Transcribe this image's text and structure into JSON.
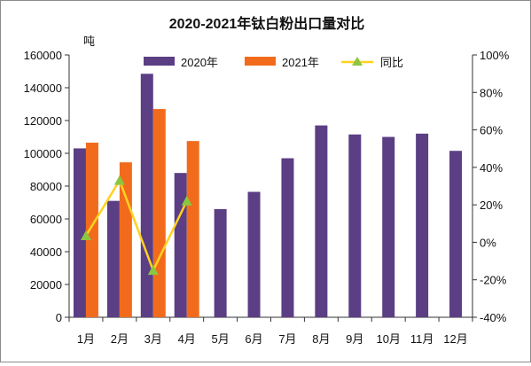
{
  "chart_data": {
    "type": "bar",
    "title": "2020-2021年钛白粉出口量对比",
    "ylabel_left": "吨",
    "categories": [
      "1月",
      "2月",
      "3月",
      "4月",
      "5月",
      "6月",
      "7月",
      "8月",
      "9月",
      "10月",
      "11月",
      "12月"
    ],
    "series": [
      {
        "name": "2020年",
        "type": "bar",
        "axis": "left",
        "color": "#5b3e84",
        "values": [
          103000,
          71000,
          148500,
          88000,
          66000,
          76500,
          97000,
          117000,
          111500,
          110000,
          112000,
          101500
        ]
      },
      {
        "name": "2021年",
        "type": "bar",
        "axis": "left",
        "color": "#f26b1c",
        "values": [
          106500,
          94500,
          127000,
          107500,
          null,
          null,
          null,
          null,
          null,
          null,
          null,
          null
        ]
      },
      {
        "name": "同比",
        "type": "line",
        "axis": "right",
        "color": "#ffd21f",
        "marker_color": "#8cc63f",
        "values": [
          3.5,
          33,
          -15,
          22,
          null,
          null,
          null,
          null,
          null,
          null,
          null,
          null
        ]
      }
    ],
    "ylim_left": [
      0,
      160000
    ],
    "yticks_left": [
      "0",
      "20000",
      "40000",
      "60000",
      "80000",
      "100000",
      "120000",
      "140000",
      "160000"
    ],
    "ylim_right": [
      -40,
      100
    ],
    "yticks_right": [
      "-40%",
      "-20%",
      "0%",
      "20%",
      "40%",
      "60%",
      "80%",
      "100%"
    ],
    "grid": false,
    "legend_position": "top"
  }
}
